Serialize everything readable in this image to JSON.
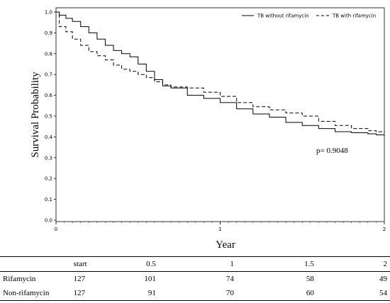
{
  "chart_data": {
    "type": "line",
    "xlabel": "Year",
    "ylabel": "Survival Probability",
    "xlim": [
      0,
      2
    ],
    "ylim": [
      0,
      1
    ],
    "xticks": [
      "0",
      "1",
      "2"
    ],
    "yticks": [
      "0.0",
      "0.1",
      "0.2",
      "0.3",
      "0.4",
      "0.5",
      "0.6",
      "0.7",
      "0.8",
      "0.9",
      "1.0"
    ],
    "legend_position": "top-right",
    "annotation": "p= 0.9048",
    "series": [
      {
        "name": "TB without rifamycin",
        "style": "solid",
        "x": [
          0,
          0.02,
          0.06,
          0.1,
          0.15,
          0.2,
          0.25,
          0.3,
          0.35,
          0.4,
          0.45,
          0.5,
          0.55,
          0.6,
          0.65,
          0.7,
          0.8,
          0.9,
          1.0,
          1.1,
          1.2,
          1.3,
          1.4,
          1.5,
          1.6,
          1.7,
          1.8,
          1.9,
          1.95,
          2.0
        ],
        "y": [
          1.0,
          0.985,
          0.97,
          0.955,
          0.93,
          0.9,
          0.87,
          0.84,
          0.815,
          0.8,
          0.785,
          0.75,
          0.715,
          0.675,
          0.645,
          0.635,
          0.6,
          0.585,
          0.565,
          0.535,
          0.51,
          0.495,
          0.47,
          0.455,
          0.44,
          0.425,
          0.42,
          0.415,
          0.41,
          0.405
        ]
      },
      {
        "name": "TB with rifamycin",
        "style": "dashed",
        "x": [
          0,
          0.02,
          0.06,
          0.1,
          0.15,
          0.2,
          0.25,
          0.3,
          0.35,
          0.4,
          0.45,
          0.5,
          0.55,
          0.6,
          0.65,
          0.7,
          0.8,
          0.9,
          1.0,
          1.1,
          1.2,
          1.3,
          1.4,
          1.5,
          1.6,
          1.7,
          1.8,
          1.9,
          1.95,
          2.0
        ],
        "y": [
          1.0,
          0.93,
          0.905,
          0.87,
          0.84,
          0.81,
          0.79,
          0.77,
          0.745,
          0.725,
          0.715,
          0.7,
          0.685,
          0.665,
          0.65,
          0.64,
          0.635,
          0.615,
          0.595,
          0.565,
          0.545,
          0.53,
          0.515,
          0.5,
          0.475,
          0.455,
          0.44,
          0.43,
          0.425,
          0.42
        ]
      }
    ]
  },
  "risk_table": {
    "columns": [
      "start",
      "0.5",
      "1",
      "1.5",
      "2"
    ],
    "rows": [
      {
        "label": "Rifamycin",
        "values": [
          "127",
          "101",
          "74",
          "58",
          "49"
        ]
      },
      {
        "label": "Non-rifamycin",
        "values": [
          "127",
          "91",
          "70",
          "60",
          "54"
        ]
      }
    ]
  }
}
